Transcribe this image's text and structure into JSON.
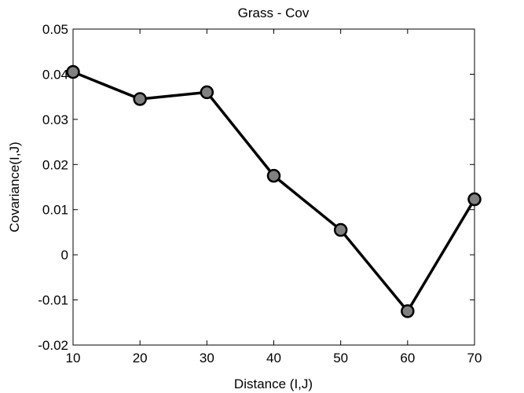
{
  "chart_data": {
    "type": "line",
    "title": "Grass - Cov",
    "xlabel": "Distance (I,J)",
    "ylabel": "Covariance(I,J)",
    "xlim": [
      10,
      70
    ],
    "ylim": [
      -0.02,
      0.05
    ],
    "xticks": [
      10,
      20,
      30,
      40,
      50,
      60,
      70
    ],
    "xtick_labels": [
      "10",
      "20",
      "30",
      "40",
      "50",
      "60",
      "70"
    ],
    "yticks": [
      -0.02,
      -0.01,
      0,
      0.01,
      0.02,
      0.03,
      0.04,
      0.05
    ],
    "ytick_labels": [
      "-0.02",
      "-0.01",
      "0",
      "0.01",
      "0.02",
      "0.03",
      "0.04",
      "0.05"
    ],
    "grid": false,
    "x": [
      10,
      20,
      30,
      40,
      50,
      60,
      70
    ],
    "series": [
      {
        "values": [
          0.0405,
          0.0345,
          0.036,
          0.0175,
          0.0055,
          -0.0125,
          0.0123
        ],
        "line_color": "#000000",
        "marker": "circle",
        "marker_fill": "#808080",
        "marker_edge": "#000000"
      }
    ]
  }
}
